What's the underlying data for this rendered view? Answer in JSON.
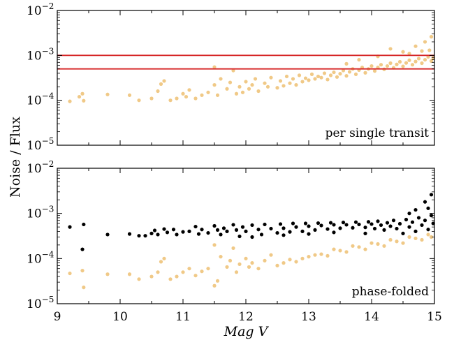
{
  "chart_data": [
    {
      "type": "scatter",
      "panel": "top",
      "annotation": "per single transit",
      "ylabel": "Noise / Flux",
      "xlabel": "Mag V",
      "xlim": [
        9,
        15
      ],
      "ylim": [
        1e-05,
        0.01
      ],
      "yscale": "log",
      "x_ticks": [
        "9",
        "10",
        "11",
        "12",
        "13",
        "14",
        "15"
      ],
      "y_ticks": [
        {
          "base": "10",
          "exp": "−2"
        },
        {
          "base": "10",
          "exp": "−3"
        },
        {
          "base": "10",
          "exp": "−4"
        },
        {
          "base": "10",
          "exp": "−5"
        }
      ],
      "hlines": [
        0.001,
        0.0005
      ],
      "hline_color": "#d62728",
      "series": [
        {
          "color": "#f0c987",
          "points": [
            [
              9.2,
              9.5e-05
            ],
            [
              9.35,
              0.00012
            ],
            [
              9.4,
              0.00014
            ],
            [
              9.42,
              9.8e-05
            ],
            [
              9.8,
              0.000135
            ],
            [
              10.15,
              0.00013
            ],
            [
              10.3,
              0.0001
            ],
            [
              10.5,
              0.00011
            ],
            [
              10.6,
              0.00016
            ],
            [
              10.65,
              0.00023
            ],
            [
              10.7,
              0.00027
            ],
            [
              10.8,
              0.0001
            ],
            [
              10.9,
              0.00011
            ],
            [
              11.0,
              0.00014
            ],
            [
              11.05,
              0.00012
            ],
            [
              11.1,
              0.00017
            ],
            [
              11.2,
              0.00011
            ],
            [
              11.3,
              0.00013
            ],
            [
              11.4,
              0.00015
            ],
            [
              11.5,
              0.00022
            ],
            [
              11.5,
              0.00055
            ],
            [
              11.55,
              0.00013
            ],
            [
              11.6,
              0.0003
            ],
            [
              11.7,
              0.00018
            ],
            [
              11.75,
              0.00025
            ],
            [
              11.8,
              0.00046
            ],
            [
              11.85,
              0.00014
            ],
            [
              11.9,
              0.0002
            ],
            [
              11.95,
              0.00015
            ],
            [
              12.0,
              0.00026
            ],
            [
              12.05,
              0.00018
            ],
            [
              12.1,
              0.00022
            ],
            [
              12.15,
              0.0003
            ],
            [
              12.2,
              0.00016
            ],
            [
              12.3,
              0.00024
            ],
            [
              12.35,
              0.0002
            ],
            [
              12.4,
              0.00032
            ],
            [
              12.5,
              0.00019
            ],
            [
              12.55,
              0.00027
            ],
            [
              12.6,
              0.00021
            ],
            [
              12.65,
              0.00034
            ],
            [
              12.7,
              0.00024
            ],
            [
              12.75,
              0.0003
            ],
            [
              12.8,
              0.00022
            ],
            [
              12.85,
              0.00036
            ],
            [
              12.9,
              0.00026
            ],
            [
              12.95,
              0.00031
            ],
            [
              13.0,
              0.00028
            ],
            [
              13.05,
              0.00038
            ],
            [
              13.1,
              0.0003
            ],
            [
              13.15,
              0.00034
            ],
            [
              13.2,
              0.00032
            ],
            [
              13.25,
              0.0004
            ],
            [
              13.3,
              0.00029
            ],
            [
              13.35,
              0.00036
            ],
            [
              13.4,
              0.00042
            ],
            [
              13.45,
              0.00033
            ],
            [
              13.5,
              0.00039
            ],
            [
              13.55,
              0.00046
            ],
            [
              13.6,
              0.00035
            ],
            [
              13.65,
              0.00043
            ],
            [
              13.7,
              0.0005
            ],
            [
              13.75,
              0.00038
            ],
            [
              13.8,
              0.00047
            ],
            [
              13.85,
              0.00054
            ],
            [
              13.9,
              0.00041
            ],
            [
              13.95,
              0.0005
            ],
            [
              14.0,
              0.00058
            ],
            [
              14.05,
              0.00045
            ],
            [
              14.1,
              0.00054
            ],
            [
              14.15,
              0.00062
            ],
            [
              14.2,
              0.00049
            ],
            [
              14.25,
              0.00058
            ],
            [
              14.3,
              0.00067
            ],
            [
              14.35,
              0.00053
            ],
            [
              14.4,
              0.00063
            ],
            [
              14.45,
              0.00072
            ],
            [
              14.5,
              0.00057
            ],
            [
              14.55,
              0.00068
            ],
            [
              14.6,
              0.00078
            ],
            [
              14.65,
              0.00062
            ],
            [
              14.7,
              0.00073
            ],
            [
              14.75,
              0.00085
            ],
            [
              14.8,
              0.00067
            ],
            [
              14.85,
              0.0008
            ],
            [
              14.9,
              0.00093
            ],
            [
              14.95,
              0.00075
            ],
            [
              14.98,
              0.00088
            ],
            [
              14.3,
              0.0014
            ],
            [
              14.5,
              0.0012
            ],
            [
              14.7,
              0.0016
            ],
            [
              14.85,
              0.002
            ],
            [
              14.95,
              0.0026
            ],
            [
              14.92,
              0.0013
            ],
            [
              14.6,
              0.0011
            ],
            [
              14.8,
              0.00125
            ],
            [
              13.8,
              0.0008
            ],
            [
              13.6,
              0.00065
            ],
            [
              14.1,
              0.00095
            ]
          ]
        }
      ]
    },
    {
      "type": "scatter",
      "panel": "bottom",
      "annotation": "phase-folded",
      "xlabel": "Mag V",
      "xlim": [
        9,
        15
      ],
      "ylim": [
        1e-05,
        0.01
      ],
      "yscale": "log",
      "x_ticks": [
        "9",
        "10",
        "11",
        "12",
        "13",
        "14",
        "15"
      ],
      "y_ticks": [
        {
          "base": "10",
          "exp": "−2"
        },
        {
          "base": "10",
          "exp": "−3"
        },
        {
          "base": "10",
          "exp": "−4"
        },
        {
          "base": "10",
          "exp": "−5"
        }
      ],
      "series": [
        {
          "color": "#f0c987",
          "points": [
            [
              9.2,
              4.7e-05
            ],
            [
              9.4,
              5.4e-05
            ],
            [
              9.42,
              2.3e-05
            ],
            [
              9.8,
              4.5e-05
            ],
            [
              10.15,
              4.5e-05
            ],
            [
              10.3,
              3.5e-05
            ],
            [
              10.5,
              4e-05
            ],
            [
              10.6,
              5e-05
            ],
            [
              10.65,
              8.5e-05
            ],
            [
              10.7,
              0.0001
            ],
            [
              10.8,
              3.5e-05
            ],
            [
              10.9,
              4e-05
            ],
            [
              11.0,
              5e-05
            ],
            [
              11.1,
              6e-05
            ],
            [
              11.2,
              4.2e-05
            ],
            [
              11.3,
              5.2e-05
            ],
            [
              11.4,
              6e-05
            ],
            [
              11.5,
              2.5e-05
            ],
            [
              11.5,
              0.0002
            ],
            [
              11.55,
              3.2e-05
            ],
            [
              11.6,
              0.00011
            ],
            [
              11.7,
              6.5e-05
            ],
            [
              11.75,
              9e-05
            ],
            [
              11.8,
              0.00017
            ],
            [
              11.85,
              5e-05
            ],
            [
              11.9,
              7.5e-05
            ],
            [
              12.0,
              0.0001
            ],
            [
              12.05,
              6.5e-05
            ],
            [
              12.1,
              8e-05
            ],
            [
              12.2,
              6e-05
            ],
            [
              12.3,
              9e-05
            ],
            [
              12.4,
              0.00012
            ],
            [
              12.5,
              7e-05
            ],
            [
              12.6,
              8e-05
            ],
            [
              12.7,
              9.5e-05
            ],
            [
              12.8,
              8.5e-05
            ],
            [
              12.9,
              0.0001
            ],
            [
              13.0,
              0.00011
            ],
            [
              13.1,
              0.00012
            ],
            [
              13.2,
              0.000125
            ],
            [
              13.3,
              0.000115
            ],
            [
              13.4,
              0.00016
            ],
            [
              13.5,
              0.00015
            ],
            [
              13.6,
              0.00014
            ],
            [
              13.7,
              0.00019
            ],
            [
              13.8,
              0.00018
            ],
            [
              13.9,
              0.00016
            ],
            [
              14.0,
              0.00022
            ],
            [
              14.1,
              0.00021
            ],
            [
              14.2,
              0.00019
            ],
            [
              14.3,
              0.00026
            ],
            [
              14.4,
              0.00024
            ],
            [
              14.5,
              0.00022
            ],
            [
              14.6,
              0.0003
            ],
            [
              14.7,
              0.00028
            ],
            [
              14.8,
              0.00026
            ],
            [
              14.9,
              0.00034
            ],
            [
              14.95,
              0.0003
            ]
          ]
        },
        {
          "color": "#000000",
          "points": [
            [
              9.2,
              0.0005
            ],
            [
              9.42,
              0.00057
            ],
            [
              9.4,
              0.00016
            ],
            [
              9.8,
              0.00034
            ],
            [
              10.15,
              0.00035
            ],
            [
              10.3,
              0.00032
            ],
            [
              10.4,
              0.00032
            ],
            [
              10.5,
              0.00036
            ],
            [
              10.55,
              0.00042
            ],
            [
              10.6,
              0.00034
            ],
            [
              10.7,
              0.00045
            ],
            [
              10.75,
              0.00038
            ],
            [
              10.85,
              0.00044
            ],
            [
              10.9,
              0.00034
            ],
            [
              11.0,
              0.00039
            ],
            [
              11.1,
              0.0004
            ],
            [
              11.2,
              0.00051
            ],
            [
              11.25,
              0.00035
            ],
            [
              11.3,
              0.00044
            ],
            [
              11.4,
              0.00037
            ],
            [
              11.5,
              0.00053
            ],
            [
              11.55,
              0.00043
            ],
            [
              11.6,
              0.00034
            ],
            [
              11.65,
              0.00047
            ],
            [
              11.7,
              0.0004
            ],
            [
              11.8,
              0.00056
            ],
            [
              11.85,
              0.00043
            ],
            [
              11.9,
              0.00031
            ],
            [
              11.95,
              0.0005
            ],
            [
              12.0,
              0.0004
            ],
            [
              12.1,
              0.00055
            ],
            [
              12.2,
              0.00044
            ],
            [
              12.25,
              0.00034
            ],
            [
              12.3,
              0.00057
            ],
            [
              12.4,
              0.00046
            ],
            [
              12.5,
              0.00037
            ],
            [
              12.55,
              0.00058
            ],
            [
              12.6,
              0.00047
            ],
            [
              12.7,
              0.00039
            ],
            [
              12.75,
              0.0006
            ],
            [
              12.8,
              0.0005
            ],
            [
              12.9,
              0.0004
            ],
            [
              12.95,
              0.0006
            ],
            [
              13.0,
              0.00052
            ],
            [
              13.1,
              0.00043
            ],
            [
              13.15,
              0.00061
            ],
            [
              13.2,
              0.00054
            ],
            [
              13.3,
              0.00045
            ],
            [
              13.35,
              0.00062
            ],
            [
              13.4,
              0.00056
            ],
            [
              13.5,
              0.00047
            ],
            [
              13.55,
              0.00063
            ],
            [
              13.6,
              0.00056
            ],
            [
              13.7,
              0.00048
            ],
            [
              13.75,
              0.00064
            ],
            [
              13.8,
              0.00057
            ],
            [
              13.9,
              0.00049
            ],
            [
              13.95,
              0.00065
            ],
            [
              14.0,
              0.00058
            ],
            [
              14.05,
              0.00046
            ],
            [
              14.1,
              0.00067
            ],
            [
              14.15,
              0.00055
            ],
            [
              14.2,
              0.00043
            ],
            [
              14.25,
              0.00062
            ],
            [
              14.3,
              0.00052
            ],
            [
              14.35,
              0.0007
            ],
            [
              14.4,
              0.00046
            ],
            [
              14.45,
              0.00059
            ],
            [
              14.5,
              0.00036
            ],
            [
              14.55,
              0.00073
            ],
            [
              14.6,
              0.0005
            ],
            [
              14.65,
              0.00064
            ],
            [
              14.7,
              0.0004
            ],
            [
              14.75,
              0.0008
            ],
            [
              14.8,
              0.00055
            ],
            [
              14.85,
              0.0007
            ],
            [
              14.9,
              0.00044
            ],
            [
              14.95,
              0.0009
            ],
            [
              14.98,
              0.0006
            ],
            [
              14.7,
              0.0012
            ],
            [
              14.85,
              0.0018
            ],
            [
              14.95,
              0.0026
            ],
            [
              14.9,
              0.0013
            ],
            [
              14.6,
              0.001
            ],
            [
              13.9,
              0.00036
            ],
            [
              13.4,
              0.00038
            ],
            [
              13.0,
              0.00035
            ],
            [
              12.6,
              0.00033
            ],
            [
              12.1,
              0.0003
            ]
          ]
        }
      ]
    }
  ]
}
